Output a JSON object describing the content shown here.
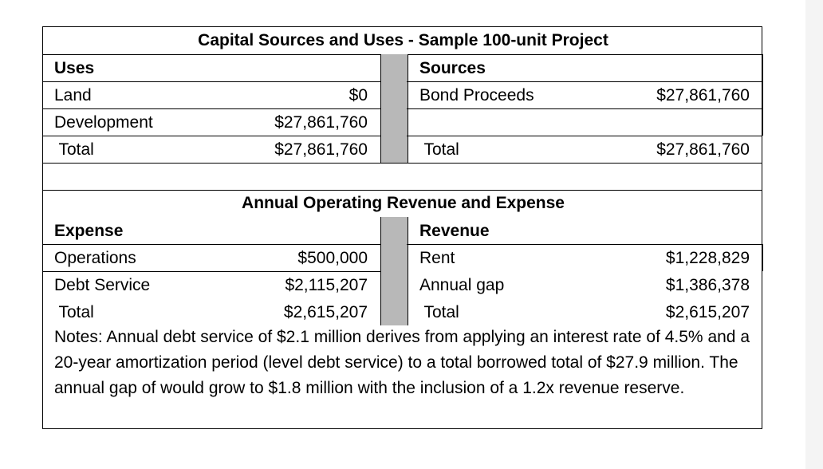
{
  "capital": {
    "title": "Capital Sources and Uses  - Sample 100-unit Project",
    "uses_header": "Uses",
    "sources_header": "Sources",
    "rows": [
      {
        "use_label": "Land",
        "use_value": "$0",
        "source_label": "Bond Proceeds",
        "source_value": "$27,861,760"
      },
      {
        "use_label": "Development",
        "use_value": "$27,861,760",
        "source_label": "",
        "source_value": ""
      },
      {
        "use_label": " Total",
        "use_value": "$27,861,760",
        "source_label": " Total",
        "source_value": "$27,861,760"
      }
    ]
  },
  "operating": {
    "title": "Annual Operating Revenue and Expense",
    "expense_header": "Expense",
    "revenue_header": "Revenue",
    "rows": [
      {
        "expense_label": "Operations",
        "expense_value": "$500,000",
        "revenue_label": "Rent",
        "revenue_value": "$1,228,829"
      },
      {
        "expense_label": "Debt Service",
        "expense_value": "$2,115,207",
        "revenue_label": "Annual gap",
        "revenue_value": "$1,386,378"
      },
      {
        "expense_label": " Total",
        "expense_value": "$2,615,207",
        "revenue_label": " Total",
        "revenue_value": "$2,615,207"
      }
    ]
  },
  "notes": "Notes:  Annual debt service of $2.1 million derives from applying an interest rate of 4.5% and a 20-year amortization period (level debt service) to a total borrowed total of $27.9 million.  The annual gap of would grow to $1.8 million with the inclusion of a 1.2x revenue reserve."
}
